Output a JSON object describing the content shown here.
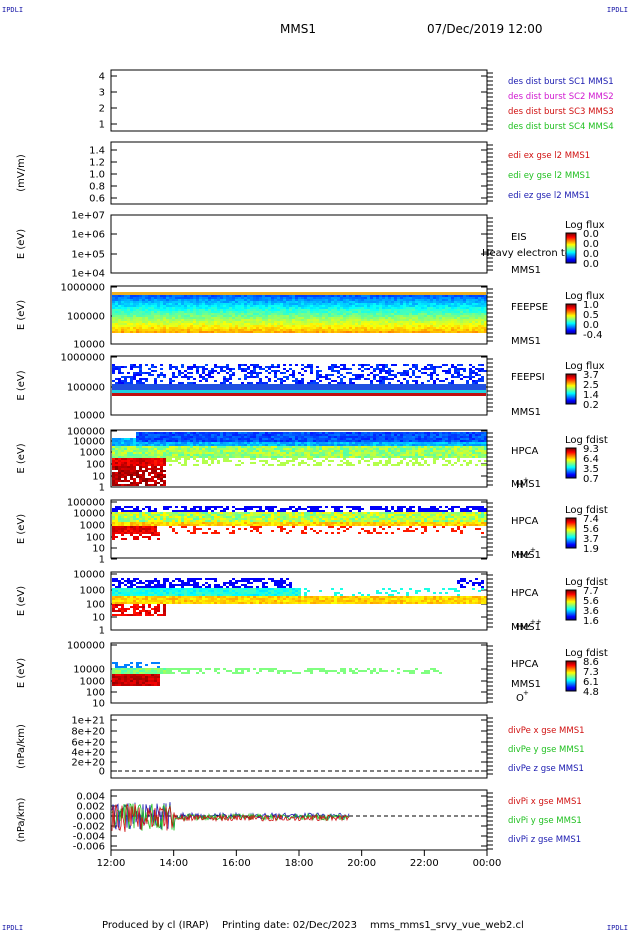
{
  "header": {
    "corner_tl": "IPDLI",
    "corner_tr": "IPDLI",
    "corner_bl": "IPDLI",
    "corner_br": "IPDLI",
    "spacecraft": "MMS1",
    "datetime": "07/Dec/2019 12:00"
  },
  "footer": {
    "produced_by": "Produced by cl (IRAP)",
    "printing_date": "Printing date: 02/Dec/2023",
    "file": "mms_mms1_srvy_vue_web2.cl"
  },
  "colors": {
    "blue": "#1a1ab0",
    "magenta": "#d018d0",
    "red": "#d01010",
    "green": "#20c020"
  },
  "chart_data": {
    "type": "heatmap",
    "x_range": [
      "12:00",
      "00:00"
    ],
    "x_ticks": [
      "12:00",
      "14:00",
      "16:00",
      "18:00",
      "20:00",
      "22:00",
      "00:00"
    ],
    "panels": [
      {
        "id": "dist-burst",
        "yticks": [
          "4",
          "3",
          "2",
          "1"
        ],
        "ylabel": "",
        "legend": [
          {
            "text": "des dist burst SC1 MMS1",
            "color": "#1a1ab0"
          },
          {
            "text": "des dist burst SC2 MMS2",
            "color": "#d018d0"
          },
          {
            "text": "des dist burst SC3 MMS3",
            "color": "#d01010"
          },
          {
            "text": "des dist burst SC4 MMS4",
            "color": "#20c020"
          }
        ]
      },
      {
        "id": "edi",
        "yticks": [
          "1.4",
          "1.2",
          "1.0",
          "0.8",
          "0.6"
        ],
        "ylabel": "(mV/m)",
        "legend": [
          {
            "text": "edi ex gse l2 MMS1",
            "color": "#d01010"
          },
          {
            "text": "edi ey gse l2 MMS1",
            "color": "#20c020"
          },
          {
            "text": "edi ez gse l2 MMS1",
            "color": "#1a1ab0"
          }
        ]
      },
      {
        "id": "eis",
        "yticks": [
          "1e+07",
          "1e+06",
          "1e+05",
          "1e+04"
        ],
        "ylabel": "E (eV)",
        "instrument": "EIS",
        "overlay": "Heavy electron to",
        "sc": "MMS1",
        "cbar_title": "Log flux",
        "cbar_ticks": [
          "0.0",
          "0.0",
          "0.0",
          "0.0"
        ]
      },
      {
        "id": "feepse",
        "yticks": [
          "1000000",
          "100000",
          "10000"
        ],
        "ylabel": "E (eV)",
        "instrument": "FEEPSE",
        "sc": "MMS1",
        "cbar_title": "Log flux",
        "cbar_ticks": [
          "1.0",
          "0.5",
          "0.0",
          "-0.4"
        ]
      },
      {
        "id": "feepsi",
        "yticks": [
          "1000000",
          "100000",
          "10000"
        ],
        "ylabel": "E (eV)",
        "instrument": "FEEPSI",
        "sc": "MMS1",
        "cbar_title": "Log flux",
        "cbar_ticks": [
          "3.7",
          "2.5",
          "1.4",
          "0.2"
        ]
      },
      {
        "id": "hpca-h",
        "yticks": [
          "100000",
          "10000",
          "1000",
          "100",
          "10",
          "1"
        ],
        "ylabel": "E (eV)",
        "instrument": "HPCA",
        "sc": "MMS1",
        "species": "H",
        "species_sup": "+",
        "cbar_title": "Log fdist",
        "cbar_ticks": [
          "9.3",
          "6.4",
          "3.5",
          "0.7"
        ]
      },
      {
        "id": "hpca-he",
        "yticks": [
          "100000",
          "10000",
          "1000",
          "100",
          "10",
          "1"
        ],
        "ylabel": "E (eV)",
        "instrument": "HPCA",
        "sc": "MMS1",
        "species": "He",
        "species_sup": "+",
        "cbar_title": "Log fdist",
        "cbar_ticks": [
          "7.4",
          "5.6",
          "3.7",
          "1.9"
        ]
      },
      {
        "id": "hpca-hepp",
        "yticks": [
          "10000",
          "1000",
          "100",
          "10",
          "1"
        ],
        "ylabel": "E (eV)",
        "instrument": "HPCA",
        "sc": "MMS1",
        "species": "He",
        "species_sup": "++",
        "cbar_title": "Log fdist",
        "cbar_ticks": [
          "7.7",
          "5.6",
          "3.6",
          "1.6"
        ]
      },
      {
        "id": "hpca-o",
        "yticks": [
          "100000",
          "10000",
          "1000",
          "100",
          "10"
        ],
        "ylabel": "E (eV)",
        "instrument": "HPCA",
        "sc": "MMS1",
        "species": "O",
        "species_sup": "+",
        "cbar_title": "Log fdist",
        "cbar_ticks": [
          "8.6",
          "7.3",
          "6.1",
          "4.8"
        ]
      },
      {
        "id": "divpe",
        "yticks": [
          "1e+21",
          "8e+20",
          "6e+20",
          "4e+20",
          "2e+20",
          "0"
        ],
        "ylabel": "(nPa/km)",
        "legend": [
          {
            "text": "divPe x gse MMS1",
            "color": "#d01010"
          },
          {
            "text": "divPe y gse MMS1",
            "color": "#20c020"
          },
          {
            "text": "divPe z gse MMS1",
            "color": "#1a1ab0"
          }
        ]
      },
      {
        "id": "divpi",
        "yticks": [
          "0.004",
          "0.002",
          "0.000",
          "-0.002",
          "-0.004",
          "-0.006"
        ],
        "ylabel": "(nPa/km)",
        "legend": [
          {
            "text": "divPi x gse MMS1",
            "color": "#d01010"
          },
          {
            "text": "divPi y gse MMS1",
            "color": "#20c020"
          },
          {
            "text": "divPi z gse MMS1",
            "color": "#1a1ab0"
          }
        ]
      }
    ]
  }
}
